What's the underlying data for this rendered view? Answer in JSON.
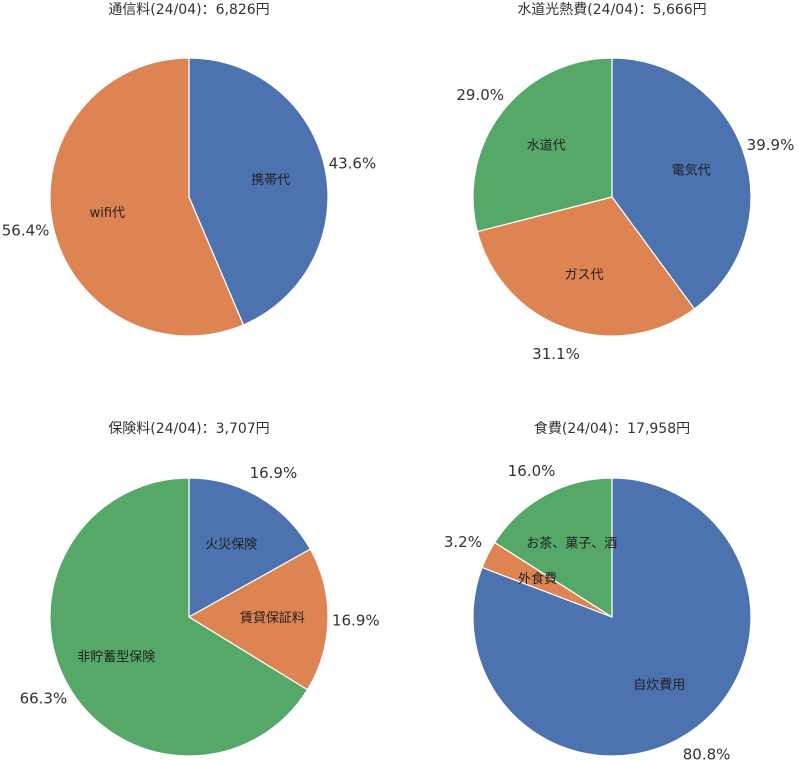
{
  "colors": {
    "blue": "#4c72b0",
    "orange": "#dd8452",
    "green": "#55a868"
  },
  "chart_data": [
    {
      "type": "pie",
      "title": "通信料(24/04)：6,826円",
      "start": "top",
      "direction": "clockwise",
      "slices": [
        {
          "label": "携帯代",
          "value": 43.6,
          "pct_label": "43.6%",
          "color": "#4c72b0"
        },
        {
          "label": "wifi代",
          "value": 56.4,
          "pct_label": "56.4%",
          "color": "#dd8452"
        }
      ]
    },
    {
      "type": "pie",
      "title": "水道光熱費(24/04)：5,666円",
      "start": "top",
      "direction": "clockwise",
      "slices": [
        {
          "label": "電気代",
          "value": 39.9,
          "pct_label": "39.9%",
          "color": "#4c72b0"
        },
        {
          "label": "ガス代",
          "value": 31.1,
          "pct_label": "31.1%",
          "color": "#dd8452"
        },
        {
          "label": "水道代",
          "value": 29.0,
          "pct_label": "29.0%",
          "color": "#55a868"
        }
      ]
    },
    {
      "type": "pie",
      "title": "保険料(24/04)：3,707円",
      "start": "top",
      "direction": "clockwise",
      "slices": [
        {
          "label": "火災保険",
          "value": 16.9,
          "pct_label": "16.9%",
          "color": "#4c72b0"
        },
        {
          "label": "賃貸保証料",
          "value": 16.9,
          "pct_label": "16.9%",
          "color": "#dd8452"
        },
        {
          "label": "非貯蓄型保険",
          "value": 66.3,
          "pct_label": "66.3%",
          "color": "#55a868"
        }
      ]
    },
    {
      "type": "pie",
      "title": "食費(24/04)：17,958円",
      "start": "top",
      "direction": "clockwise",
      "slices": [
        {
          "label": "自炊費用",
          "value": 80.8,
          "pct_label": "80.8%",
          "color": "#4c72b0"
        },
        {
          "label": "外食費",
          "value": 3.2,
          "pct_label": "3.2%",
          "color": "#dd8452"
        },
        {
          "label": "お茶、菓子、酒",
          "value": 16.0,
          "pct_label": "16.0%",
          "color": "#55a868"
        }
      ]
    }
  ]
}
